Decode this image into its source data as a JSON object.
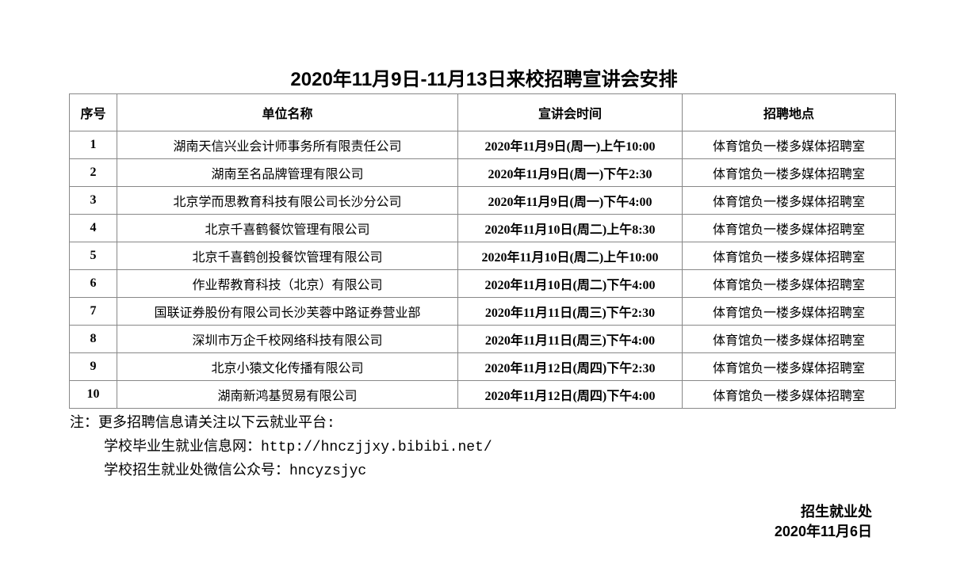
{
  "title": "2020年11月9日-11月13日来校招聘宣讲会安排",
  "table": {
    "headers": [
      "序号",
      "单位名称",
      "宣讲会时间",
      "招聘地点"
    ],
    "rows": [
      [
        "1",
        "湖南天信兴业会计师事务所有限责任公司",
        "2020年11月9日(周一)上午10:00",
        "体育馆负一楼多媒体招聘室"
      ],
      [
        "2",
        "湖南至名品牌管理有限公司",
        "2020年11月9日(周一)下午2:30",
        "体育馆负一楼多媒体招聘室"
      ],
      [
        "3",
        "北京学而思教育科技有限公司长沙分公司",
        "2020年11月9日(周一)下午4:00",
        "体育馆负一楼多媒体招聘室"
      ],
      [
        "4",
        "北京千喜鹤餐饮管理有限公司",
        "2020年11月10日(周二)上午8:30",
        "体育馆负一楼多媒体招聘室"
      ],
      [
        "5",
        "北京千喜鹤创投餐饮管理有限公司",
        "2020年11月10日(周二)上午10:00",
        "体育馆负一楼多媒体招聘室"
      ],
      [
        "6",
        "作业帮教育科技（北京）有限公司",
        "2020年11月10日(周二)下午4:00",
        "体育馆负一楼多媒体招聘室"
      ],
      [
        "7",
        "国联证券股份有限公司长沙芙蓉中路证券营业部",
        "2020年11月11日(周三)下午2:30",
        "体育馆负一楼多媒体招聘室"
      ],
      [
        "8",
        "深圳市万企千校网络科技有限公司",
        "2020年11月11日(周三)下午4:00",
        "体育馆负一楼多媒体招聘室"
      ],
      [
        "9",
        "北京小猿文化传播有限公司",
        "2020年11月12日(周四)下午2:30",
        "体育馆负一楼多媒体招聘室"
      ],
      [
        "10",
        "湖南新鸿基贸易有限公司",
        "2020年11月12日(周四)下午4:00",
        "体育馆负一楼多媒体招聘室"
      ]
    ]
  },
  "notes": [
    "注：更多招聘信息请关注以下云就业平台:",
    "学校毕业生就业信息网：http://hnczjjxy.bibibi.net/",
    "学校招生就业处微信公众号：hncyzsjyc"
  ],
  "signature": {
    "org": "招生就业处",
    "date": "2020年11月6日"
  }
}
